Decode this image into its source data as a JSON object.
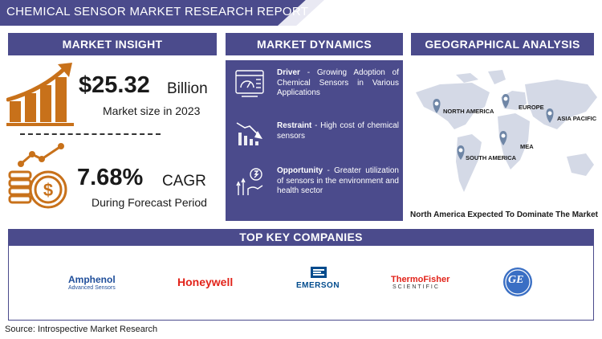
{
  "title": "CHEMICAL SENSOR MARKET RESEARCH REPORT",
  "sections": {
    "market_insight": "MARKET INSIGHT",
    "market_dynamics": "MARKET DYNAMICS",
    "geographical_analysis": "GEOGRAPHICAL ANALYSIS",
    "top_key_companies": "TOP KEY COMPANIES"
  },
  "insight": {
    "market_size_value": "$25.32",
    "market_size_unit": "Billion",
    "market_size_caption": "Market size in 2023",
    "cagr_value": "7.68%",
    "cagr_unit": "CAGR",
    "cagr_caption": "During Forecast Period"
  },
  "dynamics": [
    {
      "label": "Driver",
      "text": " - Growing Adoption of Chemical Sensors in Various Applications",
      "icon": "dashboard-icon"
    },
    {
      "label": "Restraint",
      "text": " - High cost of chemical sensors",
      "icon": "falling-chart-icon"
    },
    {
      "label": "Opportunity",
      "text": " - Greater utilization of sensors in the environment and health sector",
      "icon": "growth-hand-icon"
    }
  ],
  "geo": {
    "regions": [
      "NORTH AMERICA",
      "EUROPE",
      "ASIA PACIFIC",
      "MEA",
      "SOUTH AMERICA"
    ],
    "caption": "North America Expected To Dominate The Market"
  },
  "companies": {
    "amphenol": "Amphenol",
    "amphenol_sub": "Advanced Sensors",
    "honeywell": "Honeywell",
    "emerson": "EMERSON",
    "thermofisher": "ThermoFisher",
    "thermofisher_sub": "SCIENTIFIC",
    "ge": "GE"
  },
  "colors": {
    "navy": "#4b4b8c",
    "orange": "#c8711a",
    "map_gray": "#d4d9e6",
    "pin": "#6f86a6"
  },
  "source": "Source: Introspective Market Research"
}
